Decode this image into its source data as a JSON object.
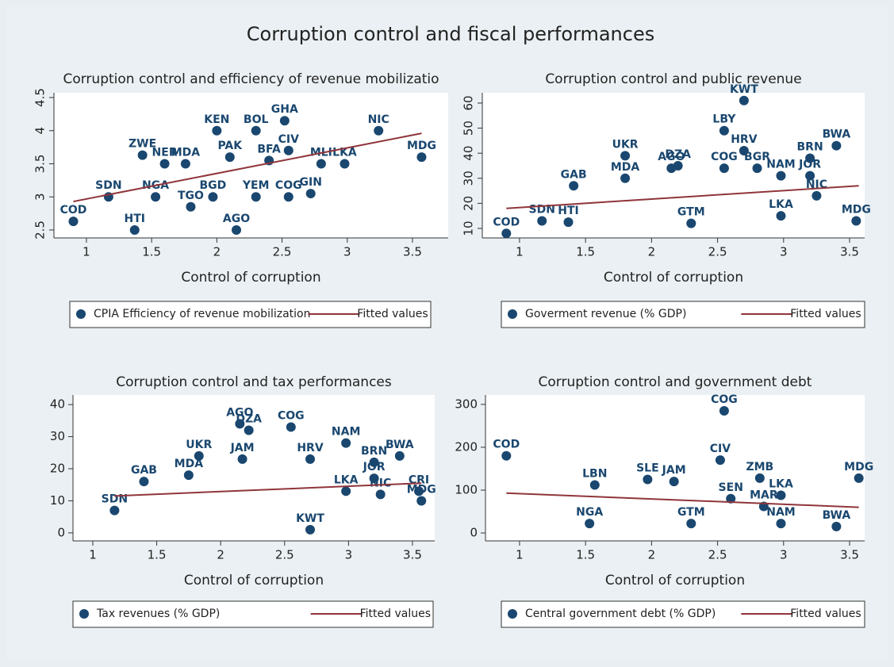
{
  "title": "Corruption control and fiscal performances",
  "chart_data": [
    {
      "type": "scatter",
      "title": "Corruption control and efficiency of revenue mobilizatio",
      "x_label": "Control of corruption",
      "xlim": [
        0.751,
        3.774
      ],
      "ylim": [
        2.38,
        4.572
      ],
      "xticks": [
        1,
        1.5,
        2,
        2.5,
        3,
        3.5
      ],
      "yticks": [
        2.5,
        3,
        3.5,
        4,
        4.5
      ],
      "grid": false,
      "series": [
        {
          "name": "CPIA Efficiency of revenue mobilization",
          "color": "#1a476f",
          "x": [
            0.9,
            1.17,
            1.37,
            1.43,
            1.53,
            1.8,
            1.97,
            2.15,
            2.3,
            2.55,
            2.72,
            2.0,
            2.3,
            2.52,
            2.98,
            3.24,
            3.57,
            2.55,
            1.76,
            1.6,
            2.1,
            2.4,
            2.8
          ],
          "values": [
            2.63,
            3.0,
            2.5,
            3.63,
            3.0,
            2.85,
            3.0,
            2.5,
            3.0,
            3.0,
            3.05,
            4.0,
            4.0,
            4.15,
            3.5,
            4.0,
            3.6,
            3.7,
            3.5,
            3.5,
            3.6,
            3.55,
            3.5
          ],
          "labels": [
            "COD",
            "SDN",
            "HTI",
            "ZWE",
            "NGA",
            "TGO",
            "BGD",
            "AGO",
            "YEM",
            "COG",
            "GIN",
            "KEN",
            "BOL",
            "GHA",
            "LKA",
            "NIC",
            "MDG",
            "CIV",
            "MDA",
            "NER",
            "PAK",
            "BFA",
            "MLI"
          ]
        },
        {
          "name": "Fitted values",
          "color": "#90353b",
          "type": "line",
          "x": [
            0.9,
            3.57
          ],
          "values": [
            2.93,
            3.96
          ]
        }
      ]
    },
    {
      "type": "scatter",
      "title": "Corruption control and public revenue",
      "x_label": "Control of corruption",
      "xlim": [
        0.718,
        3.614
      ],
      "ylim": [
        6.2,
        64.1
      ],
      "xticks": [
        1,
        1.5,
        2,
        2.5,
        3,
        3.5
      ],
      "yticks": [
        10,
        20,
        30,
        40,
        50,
        60
      ],
      "grid": false,
      "series": [
        {
          "name": "Goverment revenue (% GDP)",
          "color": "#1a476f",
          "x": [
            0.9,
            1.17,
            1.37,
            1.41,
            1.8,
            1.8,
            2.15,
            2.2,
            2.55,
            2.7,
            2.7,
            2.55,
            2.8,
            2.98,
            3.2,
            3.2,
            3.4,
            3.25,
            2.98,
            3.55,
            2.3
          ],
          "values": [
            8,
            13,
            12.5,
            27,
            39,
            30,
            34,
            35,
            49,
            61,
            41,
            34,
            34,
            31,
            38,
            31,
            43,
            23,
            15,
            13,
            12
          ],
          "labels": [
            "COD",
            "SDN",
            "HTI",
            "GAB",
            "UKR",
            "MDA",
            "AGO",
            "DZA",
            "LBY",
            "KWT",
            "HRV",
            "COG",
            "BGR",
            "NAM",
            "BRN",
            "JOR",
            "BWA",
            "NIC",
            "LKA",
            "MDG",
            "GTM"
          ]
        },
        {
          "name": "Fitted values",
          "color": "#90353b",
          "type": "line",
          "x": [
            0.9,
            3.57
          ],
          "values": [
            18,
            27
          ]
        }
      ]
    },
    {
      "type": "scatter",
      "title": "Corruption control and tax performances",
      "x_label": "Control of corruption",
      "xlim": [
        0.845,
        3.674
      ],
      "ylim": [
        -2.5,
        43
      ],
      "xticks": [
        1,
        1.5,
        2,
        2.5,
        3,
        3.5
      ],
      "yticks": [
        0,
        10,
        20,
        30,
        40
      ],
      "grid": false,
      "series": [
        {
          "name": "Tax revenues (% GDP)",
          "color": "#1a476f",
          "x": [
            1.17,
            1.83,
            1.75,
            2.15,
            2.22,
            2.55,
            2.17,
            2.98,
            2.7,
            3.2,
            3.4,
            3.2,
            3.25,
            2.98,
            2.7,
            1.4,
            3.55,
            3.57
          ],
          "values": [
            7,
            24,
            18,
            34,
            32,
            33,
            23,
            28,
            23,
            22,
            24,
            17,
            12,
            13,
            1,
            16,
            13,
            10
          ],
          "labels": [
            "SDN",
            "UKR",
            "MDA",
            "AGO",
            "DZA",
            "COG",
            "JAM",
            "NAM",
            "HRV",
            "BRN",
            "BWA",
            "JOR",
            "NIC",
            "LKA",
            "KWT",
            "GAB",
            "CRI",
            "MDG"
          ]
        },
        {
          "name": "Fitted values",
          "color": "#90353b",
          "type": "line",
          "x": [
            1.17,
            3.57
          ],
          "values": [
            11.5,
            15.5
          ]
        }
      ]
    },
    {
      "type": "scatter",
      "title": "Corruption control and government debt",
      "x_label": "Control of corruption",
      "xlim": [
        0.742,
        3.614
      ],
      "ylim": [
        -18.5,
        322
      ],
      "xticks": [
        1,
        1.5,
        2,
        2.5,
        3,
        3.5
      ],
      "yticks": [
        0,
        100,
        200,
        300
      ],
      "grid": false,
      "series": [
        {
          "name": "Central government debt (% GDP)",
          "color": "#1a476f",
          "x": [
            0.9,
            1.57,
            1.53,
            1.97,
            2.17,
            2.55,
            2.52,
            2.82,
            2.6,
            2.98,
            2.85,
            2.98,
            3.57,
            3.4,
            2.3
          ],
          "values": [
            180,
            112,
            22,
            125,
            120,
            285,
            170,
            128,
            80,
            88,
            62,
            22,
            128,
            15,
            22
          ],
          "labels": [
            "COD",
            "LBN",
            "NGA",
            "SLE",
            "JAM",
            "COG",
            "CIV",
            "ZMB",
            "SEN",
            "LKA",
            "MAR",
            "NAM",
            "MDG",
            "BWA",
            "GTM"
          ]
        },
        {
          "name": "Fitted values",
          "color": "#90353b",
          "type": "line",
          "x": [
            0.9,
            3.57
          ],
          "values": [
            93,
            60
          ]
        }
      ]
    }
  ]
}
